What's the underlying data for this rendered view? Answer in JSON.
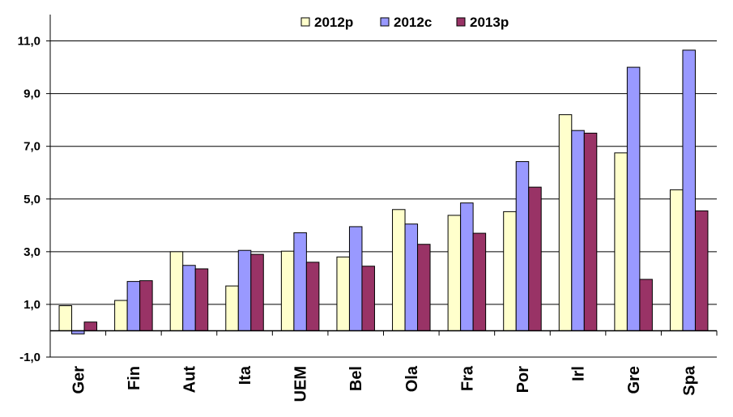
{
  "chart_data": {
    "type": "bar",
    "categories": [
      "Ger",
      "Fin",
      "Aut",
      "Ita",
      "UEM",
      "Bel",
      "Ola",
      "Fra",
      "Por",
      "Irl",
      "Gre",
      "Spa"
    ],
    "series": [
      {
        "name": "2012p",
        "color": "#ffffcc",
        "values": [
          0.95,
          1.15,
          3.0,
          1.7,
          3.02,
          2.8,
          4.6,
          4.38,
          4.52,
          8.2,
          6.75,
          5.35
        ]
      },
      {
        "name": "2012c",
        "color": "#9999ff",
        "values": [
          -0.12,
          1.87,
          2.48,
          3.05,
          3.72,
          3.95,
          4.05,
          4.85,
          6.42,
          7.6,
          10.0,
          10.65
        ]
      },
      {
        "name": "2013p",
        "color": "#993366",
        "values": [
          0.33,
          1.9,
          2.35,
          2.9,
          2.6,
          2.45,
          3.28,
          3.7,
          5.45,
          7.5,
          1.95,
          4.55
        ]
      }
    ],
    "y_ticks": [
      "-1,0",
      "1,0",
      "3,0",
      "5,0",
      "7,0",
      "9,0",
      "11,0"
    ],
    "ylim": [
      -1,
      12
    ],
    "grid": true,
    "legend_position": "top"
  }
}
